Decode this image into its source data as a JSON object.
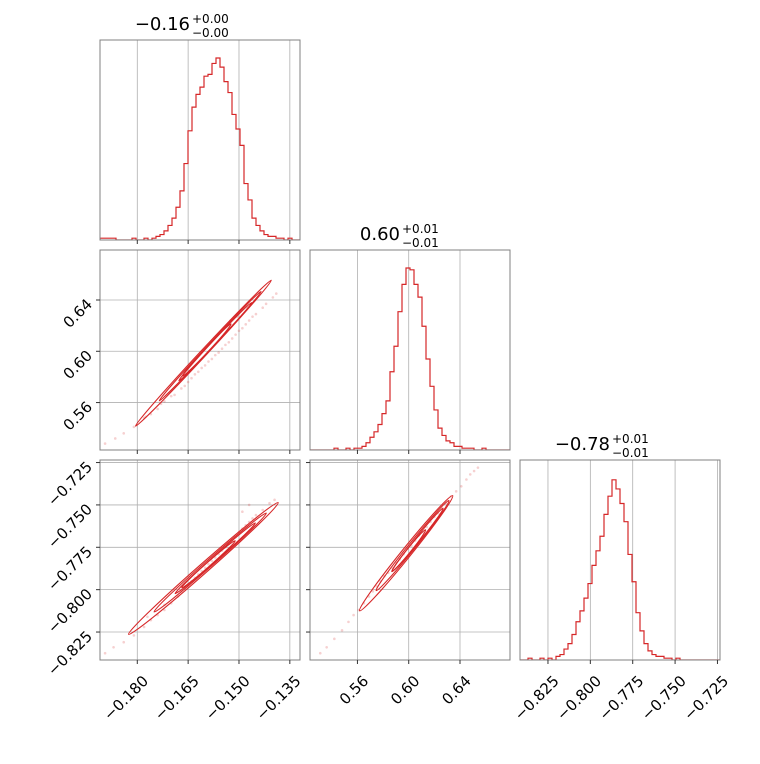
{
  "chart_data": {
    "type": "corner",
    "color": "#d62728",
    "grid": true,
    "parameters": [
      {
        "title_value": "−0.16",
        "title_plus": "+0.00",
        "title_minus": "−0.00",
        "range": [
          -0.191,
          -0.132
        ],
        "ticks": [
          -0.18,
          -0.165,
          -0.15,
          -0.135
        ],
        "tick_labels": [
          "−0.180",
          "−0.165",
          "−0.150",
          "−0.135"
        ]
      },
      {
        "title_value": "0.60",
        "title_plus": "+0.01",
        "title_minus": "−0.01",
        "range": [
          0.523,
          0.679
        ],
        "ticks": [
          0.56,
          0.6,
          0.64
        ],
        "tick_labels": [
          "0.56",
          "0.60",
          "0.64"
        ]
      },
      {
        "title_value": "−0.78",
        "title_plus": "+0.01",
        "title_minus": "−0.01",
        "range": [
          -0.8415,
          -0.7235
        ],
        "ticks": [
          -0.825,
          -0.8,
          -0.775,
          -0.75,
          -0.725
        ],
        "tick_labels": [
          "−0.825",
          "−0.800",
          "−0.775",
          "−0.750",
          "−0.725"
        ]
      }
    ],
    "histograms": [
      {
        "param": 0,
        "bin_edges": [
          -0.191,
          -0.132
        ],
        "counts": [
          0.01,
          0.01,
          0.01,
          0.01,
          0.0,
          0.0,
          0.0,
          0.0,
          0.01,
          0.0,
          0.0,
          0.01,
          0.0,
          0.01,
          0.02,
          0.03,
          0.05,
          0.08,
          0.12,
          0.18,
          0.27,
          0.42,
          0.6,
          0.73,
          0.8,
          0.84,
          0.9,
          0.91,
          0.97,
          1.0,
          0.95,
          0.87,
          0.81,
          0.69,
          0.61,
          0.52,
          0.31,
          0.22,
          0.12,
          0.08,
          0.05,
          0.03,
          0.02,
          0.02,
          0.01,
          0.01,
          0.0,
          0.01,
          0.0,
          0.0
        ]
      },
      {
        "param": 1,
        "bin_edges": [
          0.523,
          0.679
        ],
        "counts": [
          0.0,
          0.0,
          0.0,
          0.0,
          0.0,
          0.0,
          0.01,
          0.0,
          0.0,
          0.01,
          0.0,
          0.01,
          0.01,
          0.02,
          0.04,
          0.07,
          0.1,
          0.14,
          0.2,
          0.27,
          0.43,
          0.57,
          0.76,
          0.91,
          1.0,
          0.99,
          0.91,
          0.84,
          0.68,
          0.5,
          0.35,
          0.22,
          0.12,
          0.08,
          0.05,
          0.04,
          0.02,
          0.02,
          0.01,
          0.01,
          0.01,
          0.0,
          0.0,
          0.01,
          0.0,
          0.0,
          0.0,
          0.0,
          0.0,
          0.0
        ]
      },
      {
        "param": 2,
        "bin_edges": [
          -0.8415,
          -0.7235
        ],
        "counts": [
          0.0,
          0.0,
          0.01,
          0.0,
          0.0,
          0.01,
          0.0,
          0.01,
          0.0,
          0.02,
          0.03,
          0.06,
          0.09,
          0.14,
          0.21,
          0.27,
          0.34,
          0.42,
          0.52,
          0.6,
          0.68,
          0.8,
          0.9,
          0.99,
          0.94,
          0.86,
          0.76,
          0.58,
          0.43,
          0.26,
          0.16,
          0.09,
          0.05,
          0.03,
          0.02,
          0.02,
          0.01,
          0.01,
          0.0,
          0.01,
          0.0,
          0.0,
          0.0,
          0.0,
          0.0,
          0.0,
          0.0,
          0.0,
          0.0,
          0.0
        ]
      }
    ],
    "scatter_panels": [
      {
        "x_param": 0,
        "y_param": 1,
        "points": [
          [
            -0.1895,
            0.528
          ],
          [
            -0.1865,
            0.532
          ],
          [
            -0.184,
            0.536
          ],
          [
            -0.181,
            0.541
          ],
          [
            -0.178,
            0.548
          ],
          [
            -0.176,
            0.551
          ],
          [
            -0.174,
            0.555
          ],
          [
            -0.172,
            0.561
          ],
          [
            -0.17,
            0.565
          ],
          [
            -0.169,
            0.566
          ],
          [
            -0.167,
            0.571
          ],
          [
            -0.166,
            0.573
          ],
          [
            -0.165,
            0.576
          ],
          [
            -0.164,
            0.579
          ],
          [
            -0.163,
            0.582
          ],
          [
            -0.162,
            0.584
          ],
          [
            -0.161,
            0.587
          ],
          [
            -0.16,
            0.589
          ],
          [
            -0.159,
            0.592
          ],
          [
            -0.158,
            0.594
          ],
          [
            -0.157,
            0.597
          ],
          [
            -0.156,
            0.599
          ],
          [
            -0.155,
            0.602
          ],
          [
            -0.154,
            0.605
          ],
          [
            -0.153,
            0.607
          ],
          [
            -0.152,
            0.61
          ],
          [
            -0.151,
            0.613
          ],
          [
            -0.15,
            0.616
          ],
          [
            -0.149,
            0.618
          ],
          [
            -0.148,
            0.621
          ],
          [
            -0.147,
            0.624
          ],
          [
            -0.146,
            0.627
          ],
          [
            -0.145,
            0.629
          ],
          [
            -0.143,
            0.634
          ],
          [
            -0.142,
            0.637
          ],
          [
            -0.14,
            0.642
          ],
          [
            -0.139,
            0.645
          ],
          [
            -0.1475,
            0.634
          ],
          [
            -0.1505,
            0.627
          ],
          [
            -0.1525,
            0.624
          ],
          [
            -0.173,
            0.559
          ],
          [
            -0.1775,
            0.549
          ]
        ],
        "contours": [
          {
            "center": [
              -0.1605,
              0.5985
            ],
            "semi_axes": [
              0.028,
              0.0025
            ],
            "angle_deg": 70.6
          },
          {
            "center": [
              -0.1585,
              0.604
            ],
            "semi_axes": [
              0.021,
              0.0018
            ],
            "angle_deg": 70.6
          },
          {
            "center": [
              -0.157,
              0.6075
            ],
            "semi_axes": [
              0.015,
              0.0012
            ],
            "angle_deg": 70.6
          },
          {
            "center": [
              -0.1595,
              0.601
            ],
            "semi_axes": [
              0.01,
              0.0008
            ],
            "angle_deg": 70.6
          }
        ]
      },
      {
        "x_param": 0,
        "y_param": 2,
        "points": [
          [
            -0.1895,
            -0.8375
          ],
          [
            -0.187,
            -0.834
          ],
          [
            -0.184,
            -0.831
          ],
          [
            -0.181,
            -0.827
          ],
          [
            -0.178,
            -0.822
          ],
          [
            -0.176,
            -0.818
          ],
          [
            -0.174,
            -0.815
          ],
          [
            -0.172,
            -0.812
          ],
          [
            -0.17,
            -0.808
          ],
          [
            -0.168,
            -0.804
          ],
          [
            -0.167,
            -0.801
          ],
          [
            -0.166,
            -0.799
          ],
          [
            -0.165,
            -0.797
          ],
          [
            -0.164,
            -0.795
          ],
          [
            -0.163,
            -0.793
          ],
          [
            -0.162,
            -0.791
          ],
          [
            -0.161,
            -0.789
          ],
          [
            -0.16,
            -0.787
          ],
          [
            -0.159,
            -0.785
          ],
          [
            -0.158,
            -0.783
          ],
          [
            -0.157,
            -0.781
          ],
          [
            -0.156,
            -0.779
          ],
          [
            -0.155,
            -0.777
          ],
          [
            -0.154,
            -0.775
          ],
          [
            -0.153,
            -0.773
          ],
          [
            -0.152,
            -0.771
          ],
          [
            -0.151,
            -0.769
          ],
          [
            -0.15,
            -0.766
          ],
          [
            -0.149,
            -0.764
          ],
          [
            -0.148,
            -0.762
          ],
          [
            -0.147,
            -0.76
          ],
          [
            -0.146,
            -0.758
          ],
          [
            -0.145,
            -0.756
          ],
          [
            -0.143,
            -0.753
          ],
          [
            -0.141,
            -0.749
          ],
          [
            -0.1395,
            -0.747
          ],
          [
            -0.147,
            -0.75
          ],
          [
            -0.149,
            -0.754
          ],
          [
            -0.172,
            -0.809
          ],
          [
            -0.177,
            -0.816
          ]
        ],
        "contours": [
          {
            "center": [
              -0.1605,
              -0.7875
            ],
            "semi_axes": [
              0.028,
              0.0028
            ],
            "angle_deg": 60.4
          },
          {
            "center": [
              -0.1585,
              -0.784
            ],
            "semi_axes": [
              0.021,
              0.002
            ],
            "angle_deg": 60.4
          },
          {
            "center": [
              -0.157,
              -0.7815
            ],
            "semi_axes": [
              0.015,
              0.0014
            ],
            "angle_deg": 60.4
          },
          {
            "center": [
              -0.159,
              -0.785
            ],
            "semi_axes": [
              0.01,
              0.0009
            ],
            "angle_deg": 60.4
          }
        ]
      },
      {
        "x_param": 1,
        "y_param": 2,
        "points": [
          [
            0.531,
            -0.8375
          ],
          [
            0.536,
            -0.834
          ],
          [
            0.542,
            -0.829
          ],
          [
            0.548,
            -0.824
          ],
          [
            0.553,
            -0.819
          ],
          [
            0.557,
            -0.815
          ],
          [
            0.561,
            -0.812
          ],
          [
            0.565,
            -0.808
          ],
          [
            0.569,
            -0.804
          ],
          [
            0.572,
            -0.801
          ],
          [
            0.575,
            -0.798
          ],
          [
            0.578,
            -0.795
          ],
          [
            0.581,
            -0.792
          ],
          [
            0.584,
            -0.79
          ],
          [
            0.587,
            -0.787
          ],
          [
            0.59,
            -0.784
          ],
          [
            0.593,
            -0.782
          ],
          [
            0.596,
            -0.779
          ],
          [
            0.599,
            -0.776
          ],
          [
            0.602,
            -0.774
          ],
          [
            0.605,
            -0.771
          ],
          [
            0.608,
            -0.768
          ],
          [
            0.611,
            -0.766
          ],
          [
            0.614,
            -0.763
          ],
          [
            0.617,
            -0.76
          ],
          [
            0.62,
            -0.757
          ],
          [
            0.623,
            -0.755
          ],
          [
            0.626,
            -0.752
          ],
          [
            0.629,
            -0.749
          ],
          [
            0.633,
            -0.745
          ],
          [
            0.637,
            -0.742
          ],
          [
            0.641,
            -0.739
          ],
          [
            0.645,
            -0.735
          ],
          [
            0.648,
            -0.732
          ],
          [
            0.651,
            -0.73
          ],
          [
            0.654,
            -0.728
          ]
        ],
        "contours": [
          {
            "center": [
              0.598,
              -0.7785
            ],
            "semi_axes": [
              0.055,
              0.0028
            ],
            "angle_deg": 43.1
          },
          {
            "center": [
              0.603,
              -0.774
            ],
            "semi_axes": [
              0.043,
              0.002
            ],
            "angle_deg": 43.1
          },
          {
            "center": [
              0.607,
              -0.7705
            ],
            "semi_axes": [
              0.03,
              0.0014
            ],
            "angle_deg": 43.1
          },
          {
            "center": [
              0.6,
              -0.777
            ],
            "semi_axes": [
              0.02,
              0.0009
            ],
            "angle_deg": 43.1
          }
        ]
      }
    ]
  }
}
